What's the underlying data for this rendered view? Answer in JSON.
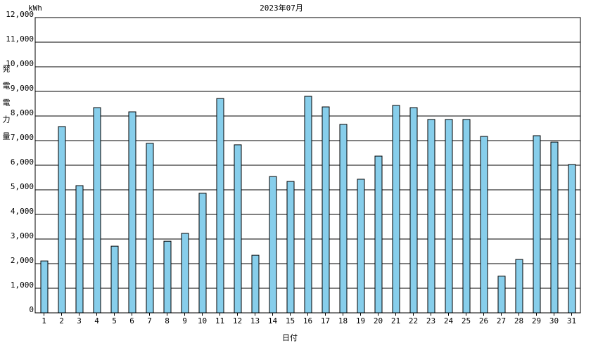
{
  "chart_data": {
    "type": "bar",
    "title": "2023年07月",
    "unit": "kWh",
    "y_label": "発電電力量",
    "x_label": "日付",
    "categories": [
      "1",
      "2",
      "3",
      "4",
      "5",
      "6",
      "7",
      "8",
      "9",
      "10",
      "11",
      "12",
      "13",
      "14",
      "15",
      "16",
      "17",
      "18",
      "19",
      "20",
      "21",
      "22",
      "23",
      "24",
      "25",
      "26",
      "27",
      "28",
      "29",
      "30",
      "31"
    ],
    "values": [
      2110,
      7570,
      5170,
      8340,
      2710,
      8170,
      6890,
      2910,
      3230,
      4860,
      8710,
      6830,
      2340,
      5540,
      5340,
      8800,
      8370,
      7660,
      5430,
      6370,
      8430,
      8340,
      7860,
      7860,
      7860,
      7170,
      1490,
      2170,
      7200,
      6940,
      6030
    ],
    "color": "#87ceeb",
    "ylim": [
      0,
      12000
    ],
    "yticks": [
      0,
      {
        "value": 1000,
        "label": "1,000"
      },
      {
        "value": 2000,
        "label": "2,000"
      },
      {
        "value": 3000,
        "label": "3,000"
      },
      {
        "value": 4000,
        "label": "4,000"
      },
      {
        "value": 5000,
        "label": "5,000"
      },
      {
        "value": 6000,
        "label": "6,000"
      },
      {
        "value": 7000,
        "label": "7,000"
      },
      {
        "value": 8000,
        "label": "8,000"
      },
      {
        "value": 9000,
        "label": "9,000"
      },
      {
        "value": 10000,
        "label": "10,000"
      },
      {
        "value": 11000,
        "label": "11,000"
      },
      {
        "value": 12000,
        "label": "12,000"
      }
    ],
    "grid": true
  }
}
